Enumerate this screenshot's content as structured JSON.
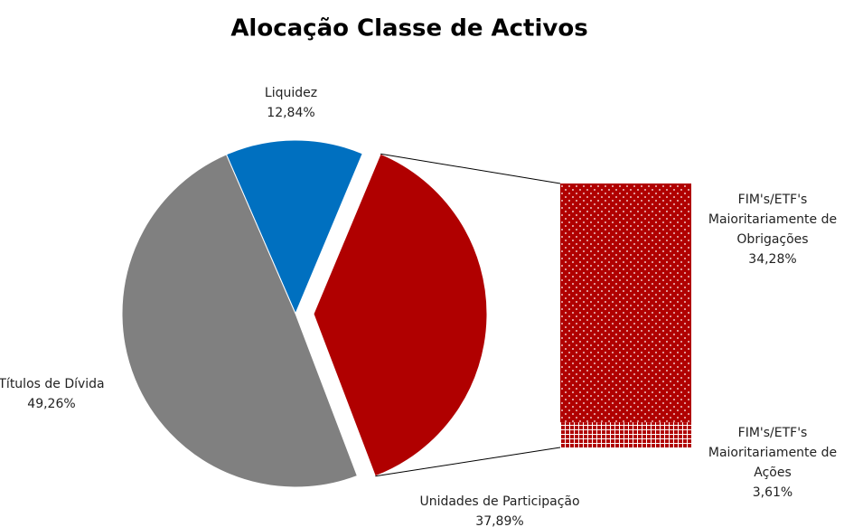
{
  "chart_data": {
    "type": "pie-of-bar",
    "title": "Alocação Classe de Activos",
    "categories": [
      "Liquidez",
      "Unidades de Participação",
      "Títulos de Dívida"
    ],
    "values": [
      12.84,
      37.89,
      49.26
    ],
    "value_labels": [
      "12,84%",
      "37,89%",
      "49,26%"
    ],
    "colors": [
      "#0070c0",
      "#b00000",
      "#808080"
    ],
    "breakdown": {
      "categories": [
        "FIM's/ETF's Maioritariamente de Obrigações",
        "FIM's/ETF's Maioritariamente de Ações"
      ],
      "values": [
        34.28,
        3.61
      ],
      "value_labels": [
        "34,28%",
        "3,61%"
      ],
      "color": "#b00000"
    }
  }
}
